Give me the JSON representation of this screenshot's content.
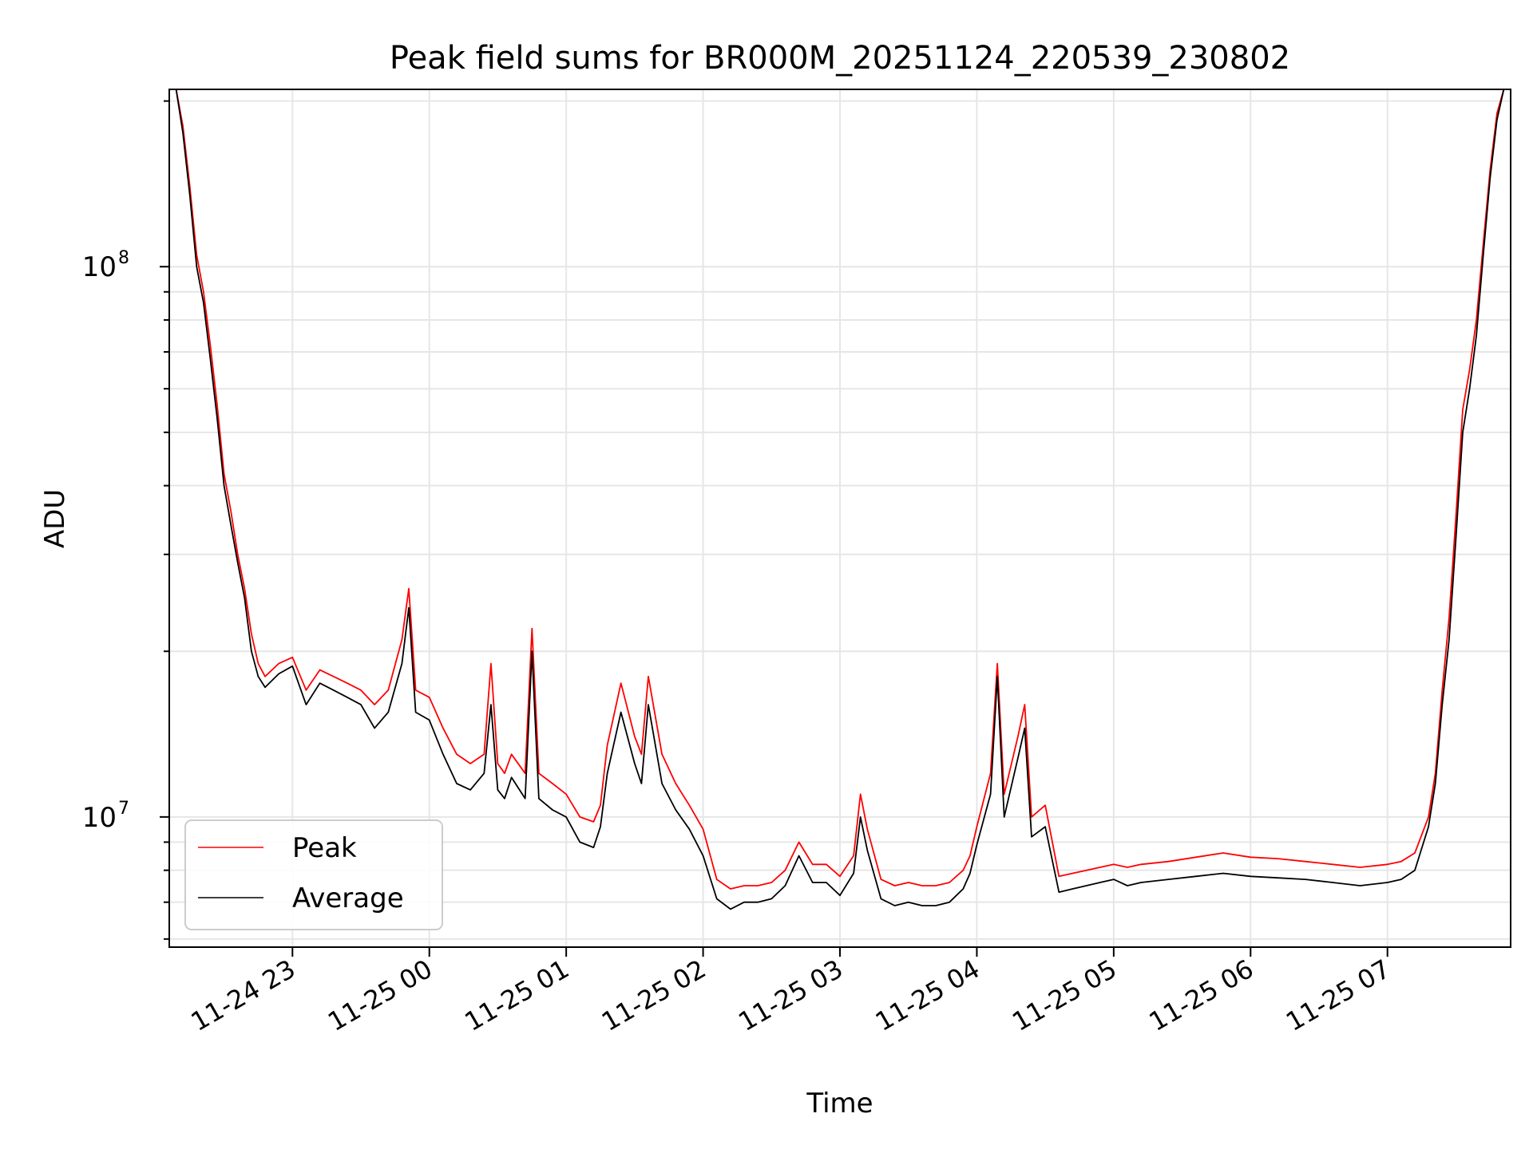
{
  "chart_data": {
    "type": "line",
    "title": "Peak field sums for BR000M_20251124_220539_230802",
    "xlabel": "Time",
    "ylabel": "ADU",
    "yscale": "log",
    "ylim": [
      5800000,
      210000000
    ],
    "xlim_hours": [
      22.1,
      31.9
    ],
    "grid": true,
    "x_tick_hours": [
      23,
      24,
      25,
      26,
      27,
      28,
      29,
      30,
      31
    ],
    "x_tick_labels": [
      "11-24 23",
      "11-25 00",
      "11-25 01",
      "11-25 02",
      "11-25 03",
      "11-25 04",
      "11-25 05",
      "11-25 06",
      "11-25 07"
    ],
    "y_tick_labels": [
      {
        "base": "10",
        "exp": "7",
        "value": 10000000
      },
      {
        "base": "10",
        "exp": "8",
        "value": 100000000
      }
    ],
    "legend": {
      "position": "lower-left",
      "entries": [
        "Peak",
        "Average"
      ]
    },
    "series": [
      {
        "name": "Peak",
        "color": "#ff0000",
        "x_hours": [
          22.15,
          22.2,
          22.25,
          22.3,
          22.35,
          22.4,
          22.45,
          22.5,
          22.55,
          22.6,
          22.65,
          22.7,
          22.75,
          22.8,
          22.9,
          23.0,
          23.1,
          23.2,
          23.3,
          23.4,
          23.5,
          23.6,
          23.7,
          23.8,
          23.85,
          23.9,
          24.0,
          24.1,
          24.2,
          24.3,
          24.4,
          24.45,
          24.5,
          24.55,
          24.6,
          24.7,
          24.75,
          24.8,
          24.9,
          25.0,
          25.1,
          25.2,
          25.25,
          25.3,
          25.4,
          25.5,
          25.55,
          25.6,
          25.7,
          25.8,
          25.9,
          26.0,
          26.1,
          26.2,
          26.3,
          26.4,
          26.5,
          26.6,
          26.7,
          26.8,
          26.9,
          27.0,
          27.1,
          27.15,
          27.2,
          27.3,
          27.4,
          27.5,
          27.6,
          27.7,
          27.8,
          27.9,
          27.95,
          28.0,
          28.1,
          28.15,
          28.2,
          28.3,
          28.35,
          28.4,
          28.5,
          28.6,
          28.7,
          28.8,
          28.9,
          29.0,
          29.1,
          29.2,
          29.4,
          29.6,
          29.8,
          30.0,
          30.2,
          30.4,
          30.6,
          30.8,
          31.0,
          31.1,
          31.2,
          31.3,
          31.35,
          31.4,
          31.45,
          31.5,
          31.55,
          31.6,
          31.65,
          31.7,
          31.75,
          31.8,
          31.85
        ],
        "values": [
          210000000,
          180000000,
          140000000,
          105000000,
          90000000,
          72000000,
          56000000,
          42000000,
          36000000,
          30000000,
          26000000,
          21500000,
          19000000,
          18000000,
          19000000,
          19500000,
          17000000,
          18500000,
          18000000,
          17500000,
          17000000,
          16000000,
          17000000,
          21000000,
          26000000,
          17000000,
          16500000,
          14500000,
          13000000,
          12500000,
          13000000,
          19000000,
          12500000,
          12000000,
          13000000,
          12000000,
          22000000,
          12000000,
          11500000,
          11000000,
          10000000,
          9800000,
          10500000,
          13500000,
          17500000,
          14000000,
          13000000,
          18000000,
          13000000,
          11500000,
          10500000,
          9500000,
          7700000,
          7400000,
          7500000,
          7500000,
          7600000,
          8000000,
          9000000,
          8200000,
          8200000,
          7800000,
          8500000,
          11000000,
          9500000,
          7700000,
          7500000,
          7600000,
          7500000,
          7500000,
          7600000,
          8000000,
          8500000,
          9600000,
          12000000,
          19000000,
          11000000,
          14000000,
          16000000,
          10000000,
          10500000,
          7800000,
          7900000,
          8000000,
          8100000,
          8200000,
          8100000,
          8200000,
          8300000,
          8450000,
          8600000,
          8450000,
          8400000,
          8300000,
          8200000,
          8100000,
          8200000,
          8300000,
          8600000,
          10000000,
          12000000,
          17000000,
          23000000,
          35000000,
          55000000,
          65000000,
          80000000,
          110000000,
          150000000,
          190000000,
          210000000
        ]
      },
      {
        "name": "Average",
        "color": "#000000",
        "x_hours": [
          22.15,
          22.2,
          22.25,
          22.3,
          22.35,
          22.4,
          22.45,
          22.5,
          22.55,
          22.6,
          22.65,
          22.7,
          22.75,
          22.8,
          22.9,
          23.0,
          23.1,
          23.2,
          23.3,
          23.4,
          23.5,
          23.6,
          23.7,
          23.8,
          23.85,
          23.9,
          24.0,
          24.1,
          24.2,
          24.3,
          24.4,
          24.45,
          24.5,
          24.55,
          24.6,
          24.7,
          24.75,
          24.8,
          24.9,
          25.0,
          25.1,
          25.2,
          25.25,
          25.3,
          25.4,
          25.5,
          25.55,
          25.6,
          25.7,
          25.8,
          25.9,
          26.0,
          26.1,
          26.2,
          26.3,
          26.4,
          26.5,
          26.6,
          26.7,
          26.8,
          26.9,
          27.0,
          27.1,
          27.15,
          27.2,
          27.3,
          27.4,
          27.5,
          27.6,
          27.7,
          27.8,
          27.9,
          27.95,
          28.0,
          28.1,
          28.15,
          28.2,
          28.3,
          28.35,
          28.4,
          28.5,
          28.6,
          28.7,
          28.8,
          28.9,
          29.0,
          29.1,
          29.2,
          29.4,
          29.6,
          29.8,
          30.0,
          30.2,
          30.4,
          30.6,
          30.8,
          31.0,
          31.1,
          31.2,
          31.3,
          31.35,
          31.4,
          31.45,
          31.5,
          31.55,
          31.6,
          31.65,
          31.7,
          31.75,
          31.8,
          31.85
        ],
        "values": [
          210000000,
          175000000,
          135000000,
          100000000,
          86000000,
          68000000,
          53000000,
          40000000,
          34000000,
          29000000,
          25000000,
          20000000,
          18000000,
          17200000,
          18200000,
          18800000,
          16000000,
          17500000,
          17000000,
          16500000,
          16000000,
          14500000,
          15500000,
          19000000,
          24000000,
          15500000,
          15000000,
          13000000,
          11500000,
          11200000,
          12000000,
          16000000,
          11200000,
          10800000,
          11800000,
          10800000,
          20000000,
          10800000,
          10300000,
          10000000,
          9000000,
          8800000,
          9600000,
          12000000,
          15500000,
          12500000,
          11500000,
          16000000,
          11500000,
          10300000,
          9500000,
          8500000,
          7100000,
          6800000,
          7000000,
          7000000,
          7100000,
          7500000,
          8500000,
          7600000,
          7600000,
          7200000,
          7900000,
          10000000,
          8700000,
          7100000,
          6900000,
          7000000,
          6900000,
          6900000,
          7000000,
          7400000,
          7900000,
          8900000,
          11000000,
          18000000,
          10000000,
          12800000,
          14500000,
          9200000,
          9600000,
          7300000,
          7400000,
          7500000,
          7600000,
          7700000,
          7500000,
          7600000,
          7700000,
          7800000,
          7900000,
          7800000,
          7750000,
          7700000,
          7600000,
          7500000,
          7600000,
          7700000,
          8000000,
          9600000,
          11500000,
          16000000,
          21000000,
          32000000,
          50000000,
          60000000,
          75000000,
          105000000,
          145000000,
          185000000,
          210000000
        ]
      }
    ]
  }
}
